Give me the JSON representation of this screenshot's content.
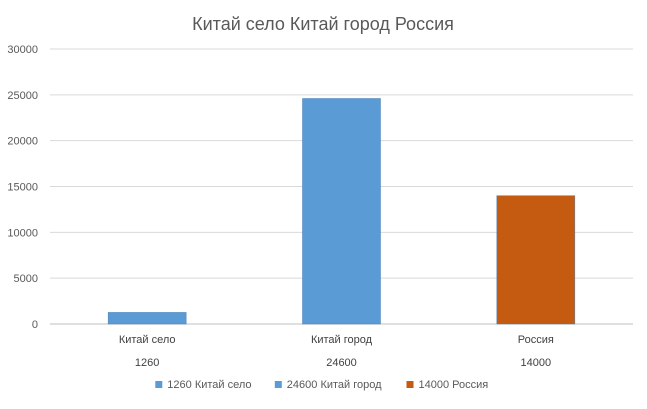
{
  "chart_data": {
    "type": "bar",
    "title": "Китай село Китай город Россия",
    "categories": [
      "Китай село",
      "Китай город",
      "Россия"
    ],
    "sublabels": [
      "1260",
      "24600",
      "14000"
    ],
    "values": [
      1260,
      24600,
      14000
    ],
    "colors": [
      "#5b9bd5",
      "#5b9bd5",
      "#c55a11"
    ],
    "ylim": [
      0,
      30000
    ],
    "yticks": [
      "0",
      "5000",
      "10000",
      "15000",
      "20000",
      "25000",
      "30000"
    ],
    "grid": true,
    "legend_position": "bottom",
    "legend": [
      {
        "label": "1260 Китай село",
        "color": "#5b9bd5"
      },
      {
        "label": "24600 Китай город",
        "color": "#5b9bd5"
      },
      {
        "label": "14000 Россия",
        "color": "#c55a11"
      }
    ]
  }
}
